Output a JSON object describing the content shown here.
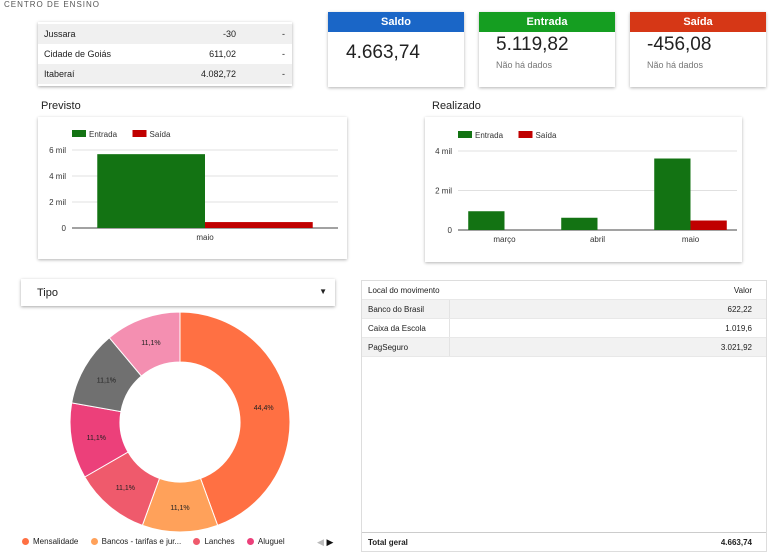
{
  "header": {
    "title": "CENTRO DE ENSINO"
  },
  "mini_table": {
    "rows": [
      {
        "name": "Jussara",
        "value": "-30",
        "extra": "-"
      },
      {
        "name": "Cidade de Goiás",
        "value": "611,02",
        "extra": "-"
      },
      {
        "name": "Itaberaí",
        "value": "4.082,72",
        "extra": "-"
      }
    ]
  },
  "kpis": {
    "saldo": {
      "label": "Saldo",
      "value": "4.663,74",
      "note": "",
      "color": "#1a66c7"
    },
    "entrada": {
      "label": "Entrada",
      "value": "5.119,82",
      "note": "Não há dados",
      "color": "#159e21"
    },
    "saida": {
      "label": "Saída",
      "value": "-456,08",
      "note": "Não há dados",
      "color": "#d63716"
    }
  },
  "previsto": {
    "title": "Previsto"
  },
  "realizado": {
    "title": "Realizado"
  },
  "chart_data": [
    {
      "type": "bar",
      "title": "Previsto",
      "categories": [
        "maio"
      ],
      "series": [
        {
          "name": "Entrada",
          "values": [
            5680
          ],
          "color": "#137313"
        },
        {
          "name": "Saída",
          "values": [
            456
          ],
          "color": "#c00000"
        }
      ],
      "yticks": [
        "0",
        "2 mil",
        "4 mil",
        "6 mil"
      ],
      "ylim": [
        0,
        6000
      ],
      "legend": "top-left",
      "grid": true
    },
    {
      "type": "bar",
      "title": "Realizado",
      "categories": [
        "março",
        "abril",
        "maio"
      ],
      "series": [
        {
          "name": "Entrada",
          "values": [
            950,
            620,
            3620
          ],
          "color": "#137313"
        },
        {
          "name": "Saída",
          "values": [
            0,
            0,
            480
          ],
          "color": "#c00000"
        }
      ],
      "yticks": [
        "0",
        "2 mil",
        "4 mil"
      ],
      "ylim": [
        0,
        4000
      ],
      "legend": "top-left",
      "grid": true
    },
    {
      "type": "pie",
      "title": "",
      "slices": [
        {
          "name": "Mensalidade",
          "value": 44.4,
          "label": "44,4%",
          "color": "#ff7043"
        },
        {
          "name": "Bancos - tarifas e jur...",
          "value": 11.1,
          "label": "11,1%",
          "color": "#ffa15a"
        },
        {
          "name": "Lanches",
          "value": 11.1,
          "label": "11,1%",
          "color": "#ef5a6c"
        },
        {
          "name": "Aluguel",
          "value": 11.1,
          "label": "11,1%",
          "color": "#ec407a"
        },
        {
          "name": "",
          "value": 11.1,
          "label": "11,1%",
          "color": "#707070"
        },
        {
          "name": "",
          "value": 11.1,
          "label": "11,1%",
          "color": "#f48fb1"
        }
      ]
    }
  ],
  "dropdown": {
    "label": "Tipo",
    "arrow": "▼"
  },
  "pie_legend": [
    {
      "label": "Mensalidade",
      "color": "#ff7043"
    },
    {
      "label": "Bancos - tarifas e jur...",
      "color": "#ffa15a"
    },
    {
      "label": "Lanches",
      "color": "#ef5a6c"
    },
    {
      "label": "Aluguel",
      "color": "#ec407a"
    }
  ],
  "pager": {
    "prev": "◀",
    "next": "▶"
  },
  "value_table": {
    "headers": {
      "col1": "Local do movimento",
      "col2": "Valor"
    },
    "rows": [
      {
        "name": "Banco do Brasil",
        "value": "622,22"
      },
      {
        "name": "Caixa da Escola",
        "value": "1.019,6"
      },
      {
        "name": "PagSeguro",
        "value": "3.021,92"
      }
    ],
    "total": {
      "label": "Total geral",
      "value": "4.663,74"
    }
  }
}
